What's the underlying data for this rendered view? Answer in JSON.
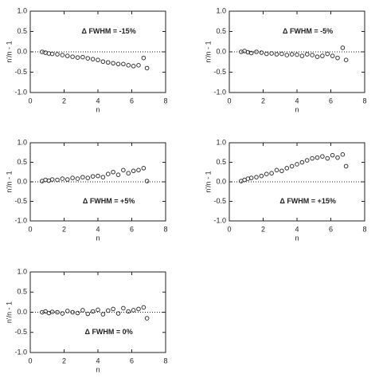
{
  "chart_data": [
    {
      "type": "scatter",
      "annotation": "Δ FWHM  = -15%",
      "xlabel": "n",
      "ylabel": "n'/n - 1",
      "color": "#333333",
      "zero_line": true,
      "xlim": [
        0,
        8
      ],
      "xticks": [
        0,
        2,
        4,
        6,
        8
      ],
      "ylim": [
        -1,
        1
      ],
      "yticks": [
        {
          "value": -1,
          "label": "-1.0"
        },
        {
          "value": -0.5,
          "label": "-0.5"
        },
        {
          "value": 0,
          "label": "0.0"
        },
        {
          "value": 0.5,
          "label": "0.5"
        },
        {
          "value": 1,
          "label": "1.0"
        }
      ],
      "x": [
        0.7,
        0.9,
        1.1,
        1.3,
        1.6,
        1.9,
        2.2,
        2.5,
        2.8,
        3.1,
        3.4,
        3.7,
        4.0,
        4.3,
        4.6,
        4.9,
        5.2,
        5.5,
        5.8,
        6.1,
        6.4,
        6.7,
        6.9
      ],
      "y": [
        0,
        -0.02,
        -0.04,
        -0.05,
        -0.06,
        -0.08,
        -0.1,
        -0.12,
        -0.14,
        -0.13,
        -0.16,
        -0.18,
        -0.2,
        -0.24,
        -0.26,
        -0.28,
        -0.3,
        -0.3,
        -0.33,
        -0.35,
        -0.33,
        -0.15,
        -0.4
      ]
    },
    {
      "type": "scatter",
      "annotation": "Δ FWHM  = -5%",
      "xlabel": "n",
      "ylabel": "n'/n - 1",
      "color": "#333333",
      "zero_line": true,
      "xlim": [
        0,
        8
      ],
      "xticks": [
        0,
        2,
        4,
        6,
        8
      ],
      "ylim": [
        -1,
        1
      ],
      "yticks": [
        {
          "value": -1,
          "label": "-1.0"
        },
        {
          "value": -0.5,
          "label": "-0.5"
        },
        {
          "value": 0,
          "label": "0.0"
        },
        {
          "value": 0.5,
          "label": "0.5"
        },
        {
          "value": 1,
          "label": "1.0"
        }
      ],
      "x": [
        0.7,
        0.9,
        1.1,
        1.3,
        1.6,
        1.9,
        2.2,
        2.5,
        2.8,
        3.1,
        3.4,
        3.7,
        4.0,
        4.3,
        4.6,
        4.9,
        5.2,
        5.5,
        5.8,
        6.1,
        6.4,
        6.7,
        6.9
      ],
      "y": [
        0,
        0.02,
        -0.01,
        -0.03,
        0,
        -0.02,
        -0.05,
        -0.04,
        -0.06,
        -0.05,
        -0.08,
        -0.06,
        -0.07,
        -0.1,
        -0.06,
        -0.08,
        -0.12,
        -0.1,
        -0.05,
        -0.1,
        -0.15,
        0.1,
        -0.2
      ]
    },
    {
      "type": "scatter",
      "annotation": "Δ FWHM  = +5%",
      "xlabel": "n",
      "ylabel": "n'/n - 1",
      "color": "#333333",
      "zero_line": true,
      "xlim": [
        0,
        8
      ],
      "xticks": [
        0,
        2,
        4,
        6,
        8
      ],
      "ylim": [
        -1,
        1
      ],
      "yticks": [
        {
          "value": -1,
          "label": "-1.0"
        },
        {
          "value": -0.5,
          "label": "-0.5"
        },
        {
          "value": 0,
          "label": "0.0"
        },
        {
          "value": 0.5,
          "label": "0.5"
        },
        {
          "value": 1,
          "label": "1.0"
        }
      ],
      "x": [
        0.7,
        0.9,
        1.1,
        1.3,
        1.6,
        1.9,
        2.2,
        2.5,
        2.8,
        3.1,
        3.4,
        3.7,
        4.0,
        4.3,
        4.6,
        4.9,
        5.2,
        5.5,
        5.8,
        6.1,
        6.4,
        6.7,
        6.9
      ],
      "y": [
        0.02,
        0.05,
        0.03,
        0.06,
        0.05,
        0.08,
        0.06,
        0.1,
        0.08,
        0.12,
        0.1,
        0.14,
        0.15,
        0.12,
        0.2,
        0.25,
        0.18,
        0.3,
        0.22,
        0.28,
        0.3,
        0.35,
        0.02
      ]
    },
    {
      "type": "scatter",
      "annotation": "Δ FWHM  = +15%",
      "xlabel": "n",
      "ylabel": "n'/n - 1",
      "color": "#333333",
      "zero_line": true,
      "xlim": [
        0,
        8
      ],
      "xticks": [
        0,
        2,
        4,
        6,
        8
      ],
      "ylim": [
        -1,
        1
      ],
      "yticks": [
        {
          "value": -1,
          "label": "-1.0"
        },
        {
          "value": -0.5,
          "label": "-0.5"
        },
        {
          "value": 0,
          "label": "0.0"
        },
        {
          "value": 0.5,
          "label": "0.5"
        },
        {
          "value": 1,
          "label": "1.0"
        }
      ],
      "x": [
        0.7,
        0.9,
        1.1,
        1.3,
        1.6,
        1.9,
        2.2,
        2.5,
        2.8,
        3.1,
        3.4,
        3.7,
        4.0,
        4.3,
        4.6,
        4.9,
        5.2,
        5.5,
        5.8,
        6.1,
        6.4,
        6.7,
        6.9
      ],
      "y": [
        0.02,
        0.05,
        0.08,
        0.1,
        0.12,
        0.15,
        0.2,
        0.22,
        0.3,
        0.28,
        0.35,
        0.4,
        0.45,
        0.5,
        0.55,
        0.6,
        0.62,
        0.65,
        0.6,
        0.68,
        0.62,
        0.7,
        0.4
      ]
    },
    {
      "type": "scatter",
      "annotation": "Δ FWHM  = 0%",
      "xlabel": "n",
      "ylabel": "n'/n - 1",
      "color": "#333333",
      "zero_line": true,
      "xlim": [
        0,
        8
      ],
      "xticks": [
        0,
        2,
        4,
        6,
        8
      ],
      "ylim": [
        -1,
        1
      ],
      "yticks": [
        {
          "value": -1,
          "label": "-1.0"
        },
        {
          "value": -0.5,
          "label": "-0.5"
        },
        {
          "value": 0,
          "label": "0.0"
        },
        {
          "value": 0.5,
          "label": "0.5"
        },
        {
          "value": 1,
          "label": "1.0"
        }
      ],
      "x": [
        0.7,
        0.9,
        1.1,
        1.3,
        1.6,
        1.9,
        2.2,
        2.5,
        2.8,
        3.1,
        3.4,
        3.7,
        4.0,
        4.3,
        4.6,
        4.9,
        5.2,
        5.5,
        5.8,
        6.1,
        6.4,
        6.7,
        6.9
      ],
      "y": [
        0,
        0.02,
        -0.02,
        0.01,
        0,
        -0.03,
        0.03,
        0,
        -0.02,
        0.05,
        -0.04,
        0.02,
        0.06,
        -0.05,
        0.04,
        0.08,
        -0.03,
        0.1,
        0.02,
        0.05,
        0.08,
        0.12,
        -0.15
      ]
    }
  ]
}
